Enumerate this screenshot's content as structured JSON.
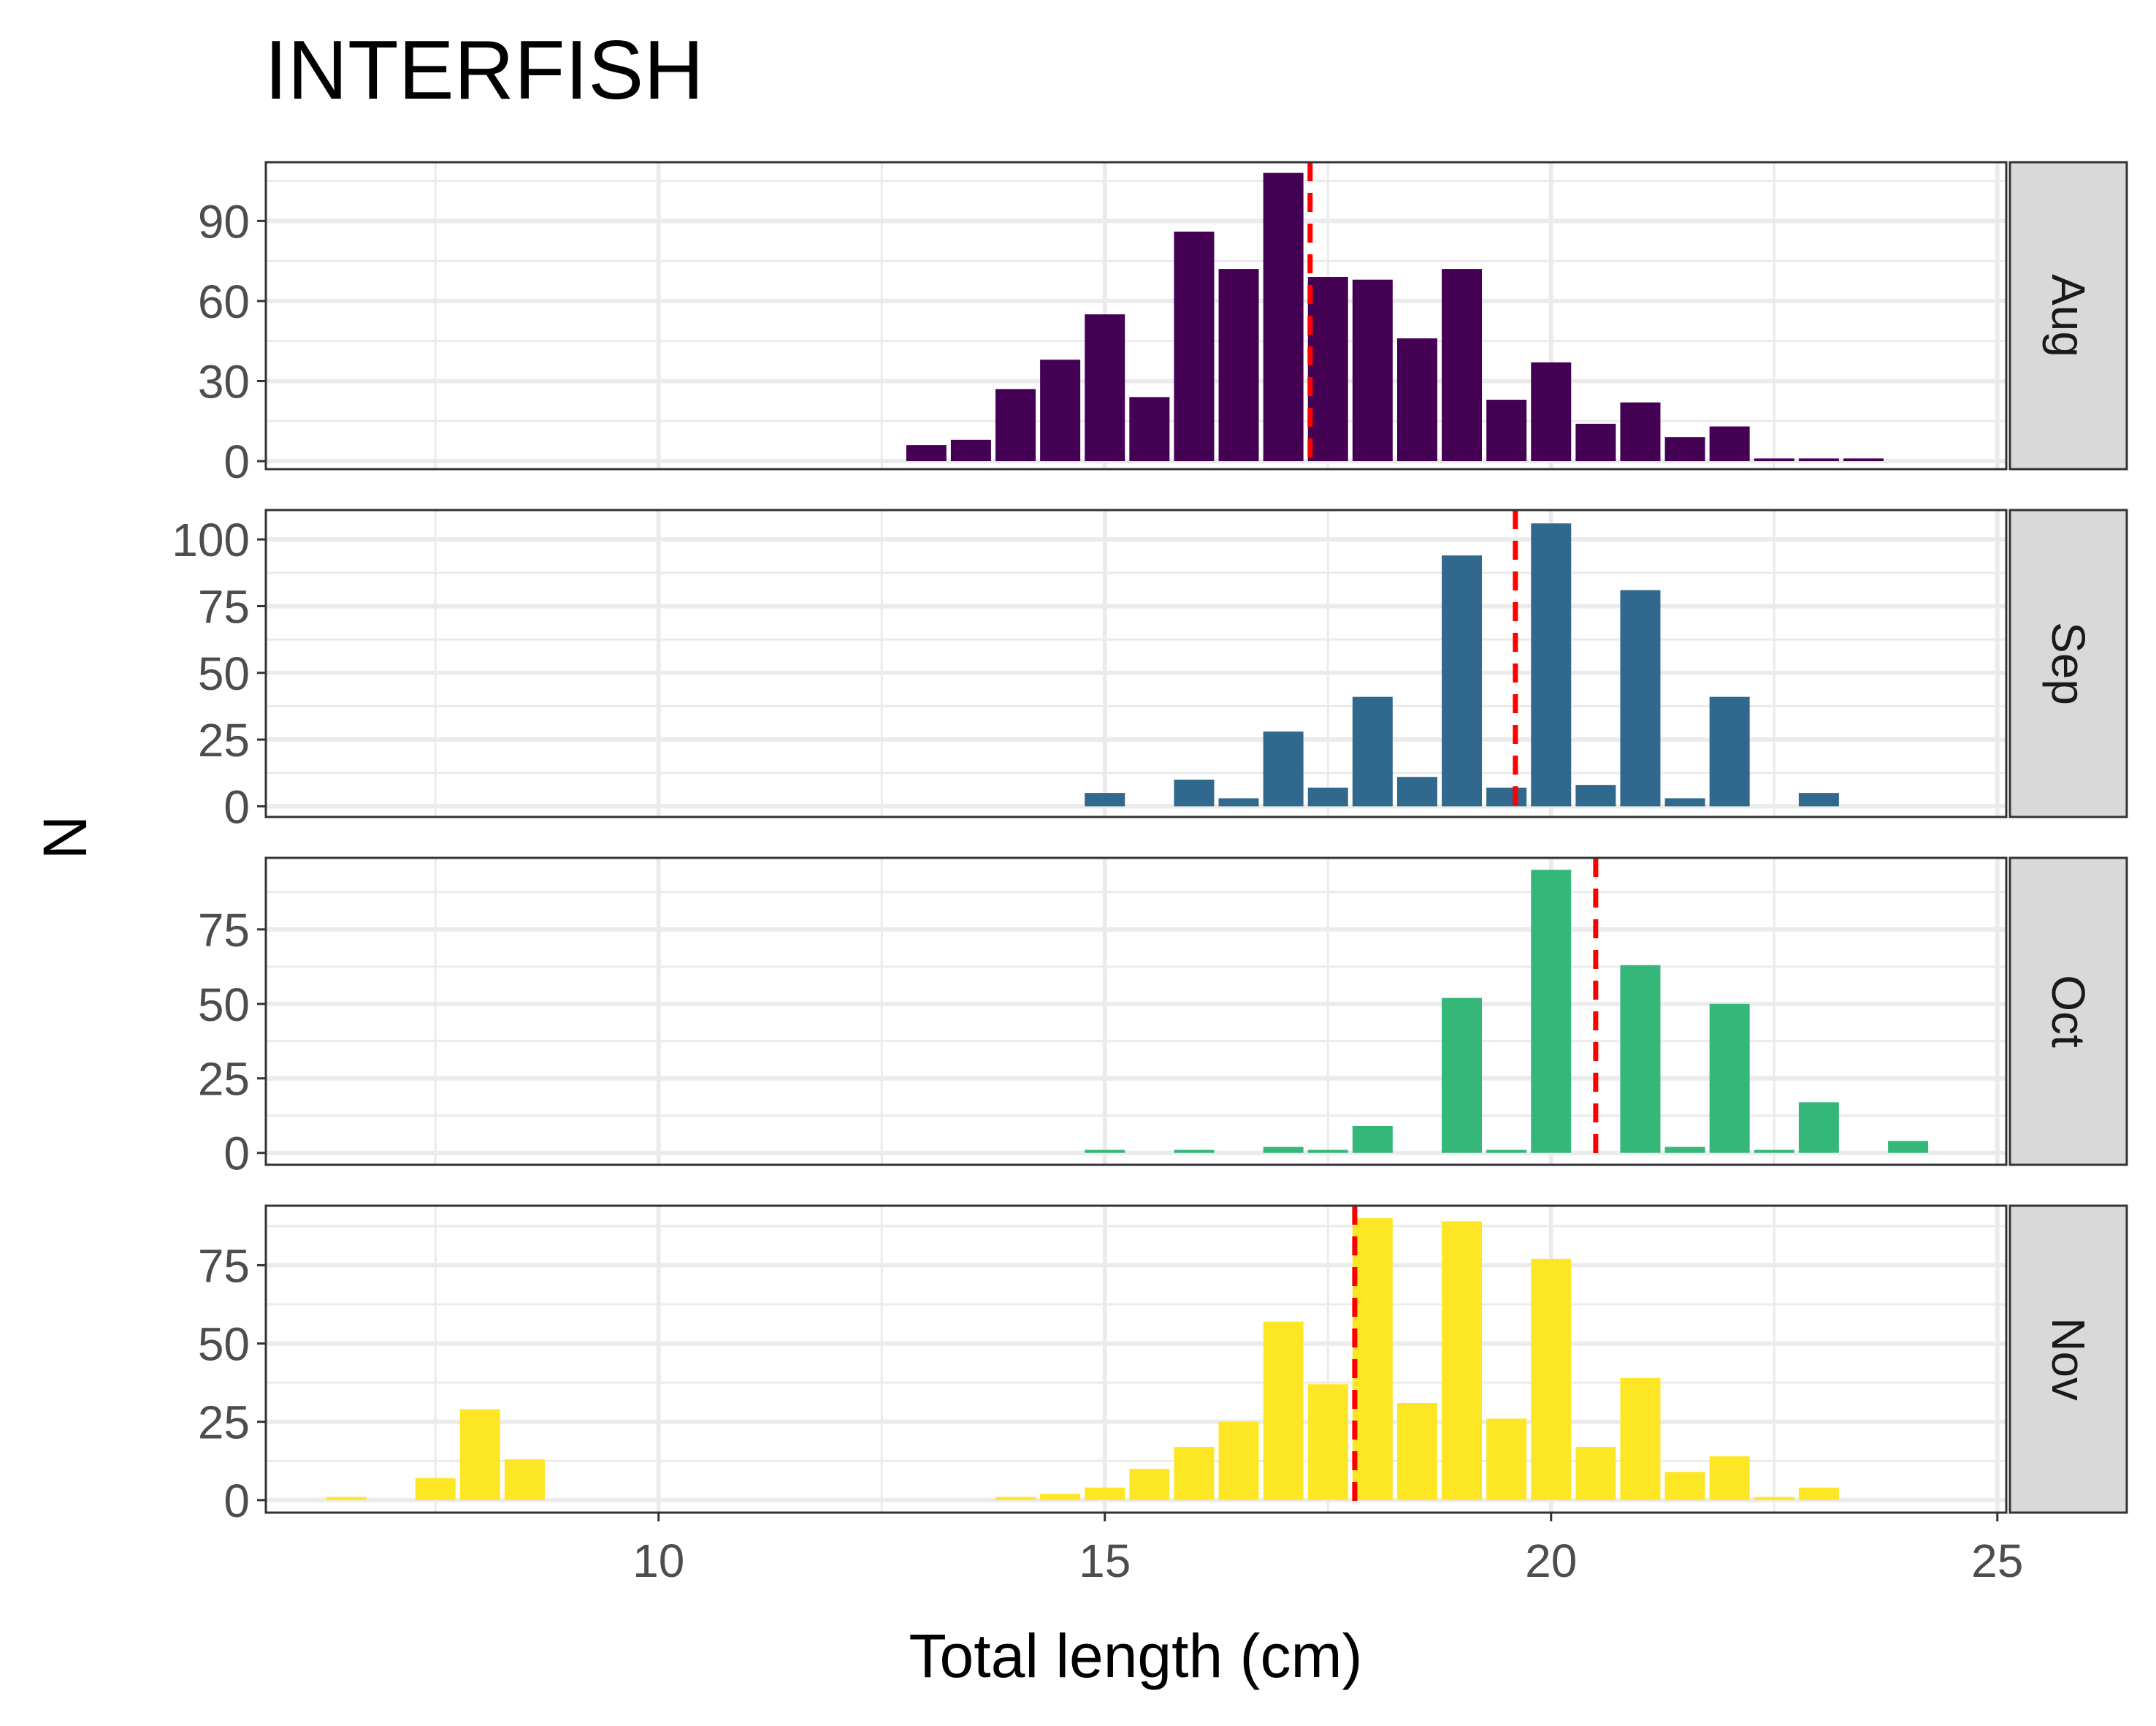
{
  "chart_data": {
    "type": "bar",
    "title": "INTERFISH",
    "xlabel": "Total length (cm)",
    "ylabel": "N",
    "xlim": [
      5.6,
      25.1
    ],
    "x_ticks": [
      10,
      15,
      20,
      25
    ],
    "grid": true,
    "bar_width": 0.45,
    "mean_line_color": "#ff0000",
    "panels": [
      {
        "name": "Aug",
        "color": "#440154",
        "ylim": [
          -3,
          112
        ],
        "y_ticks": [
          0,
          30,
          60,
          90
        ],
        "mean": 17.3,
        "x": [
          13.0,
          13.5,
          14.0,
          14.5,
          15.0,
          15.5,
          16.0,
          16.5,
          17.0,
          17.5,
          18.0,
          18.5,
          19.0,
          19.5,
          20.0,
          20.5,
          21.0,
          21.5,
          22.0,
          22.5,
          23.0,
          23.5
        ],
        "values": [
          6,
          8,
          27,
          38,
          55,
          24,
          86,
          72,
          108,
          69,
          68,
          46,
          72,
          23,
          37,
          14,
          22,
          9,
          13,
          1,
          1,
          1
        ]
      },
      {
        "name": "Sep",
        "color": "#31688e",
        "ylim": [
          -4,
          111
        ],
        "y_ticks": [
          0,
          25,
          50,
          75,
          100
        ],
        "mean": 19.6,
        "x": [
          15.0,
          15.5,
          16.0,
          16.5,
          17.0,
          17.5,
          18.0,
          18.5,
          19.0,
          19.5,
          20.0,
          20.5,
          21.0,
          21.5,
          22.0,
          22.5,
          23.0
        ],
        "values": [
          5,
          0,
          10,
          3,
          28,
          7,
          41,
          11,
          94,
          7,
          106,
          8,
          81,
          3,
          41,
          0,
          5
        ]
      },
      {
        "name": "Oct",
        "color": "#35b779",
        "ylim": [
          -4,
          99
        ],
        "y_ticks": [
          0,
          25,
          50,
          75
        ],
        "mean": 20.5,
        "x": [
          15.0,
          15.5,
          16.0,
          16.5,
          17.0,
          17.5,
          18.0,
          18.5,
          19.0,
          19.5,
          20.0,
          20.5,
          21.0,
          21.5,
          22.0,
          22.5,
          23.0,
          23.5,
          24.0
        ],
        "values": [
          1,
          0,
          1,
          0,
          2,
          1,
          9,
          0,
          52,
          1,
          95,
          0,
          63,
          2,
          50,
          1,
          17,
          0,
          4
        ]
      },
      {
        "name": "Nov",
        "color": "#fde725",
        "ylim": [
          -4,
          94
        ],
        "y_ticks": [
          0,
          25,
          50,
          75
        ],
        "mean": 17.8,
        "x": [
          6.5,
          7.0,
          7.5,
          8.0,
          8.5,
          14.0,
          14.5,
          15.0,
          15.5,
          16.0,
          16.5,
          17.0,
          17.5,
          18.0,
          18.5,
          19.0,
          19.5,
          20.0,
          20.5,
          21.0,
          21.5,
          22.0,
          22.5,
          23.0
        ],
        "values": [
          1,
          0,
          7,
          29,
          13,
          1,
          2,
          4,
          10,
          17,
          25,
          57,
          37,
          90,
          31,
          89,
          26,
          77,
          17,
          39,
          9,
          14,
          1,
          4
        ]
      }
    ]
  }
}
